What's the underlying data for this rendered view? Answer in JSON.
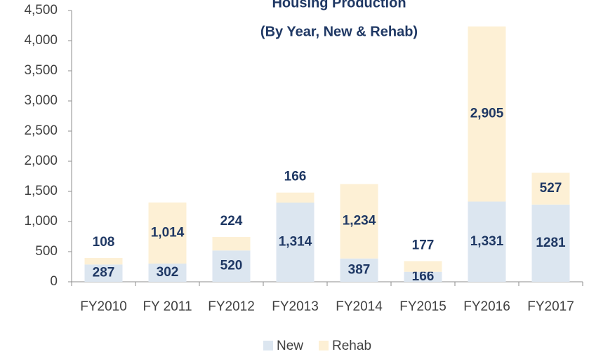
{
  "chart_data": {
    "type": "stacked_bar",
    "title": "Housing Production",
    "subtitle": "(By Year, New & Rehab)",
    "categories": [
      "FY2010",
      "FY 2011",
      "FY2012",
      "FY2013",
      "FY2014",
      "FY2015",
      "FY2016",
      "FY2017"
    ],
    "series": [
      {
        "name": "New",
        "color": "#dce6f0",
        "values": [
          287,
          302,
          520,
          1314,
          387,
          166,
          1331,
          1281
        ],
        "value_labels": [
          "287",
          "302",
          "520",
          "1,314",
          "387",
          "166",
          "1,331",
          "1281"
        ]
      },
      {
        "name": "Rehab",
        "color": "#fdf0d5",
        "values": [
          108,
          1014,
          224,
          166,
          1234,
          177,
          2905,
          527
        ],
        "value_labels": [
          "108",
          "1,014",
          "224",
          "166",
          "1,234",
          "177",
          "2,905",
          "527"
        ]
      }
    ],
    "ylim": [
      0,
      4500
    ],
    "yticks": [
      {
        "value": 0,
        "label": "0"
      },
      {
        "value": 500,
        "label": "500"
      },
      {
        "value": 1000,
        "label": "1,000"
      },
      {
        "value": 1500,
        "label": "1,500"
      },
      {
        "value": 2000,
        "label": "2,000"
      },
      {
        "value": 2500,
        "label": "2,500"
      },
      {
        "value": 3000,
        "label": "3,000"
      },
      {
        "value": 3500,
        "label": "3,500"
      },
      {
        "value": 4000,
        "label": "4,000"
      },
      {
        "value": 4500,
        "label": "4,500"
      }
    ],
    "grid": false,
    "legend": "bottom"
  }
}
